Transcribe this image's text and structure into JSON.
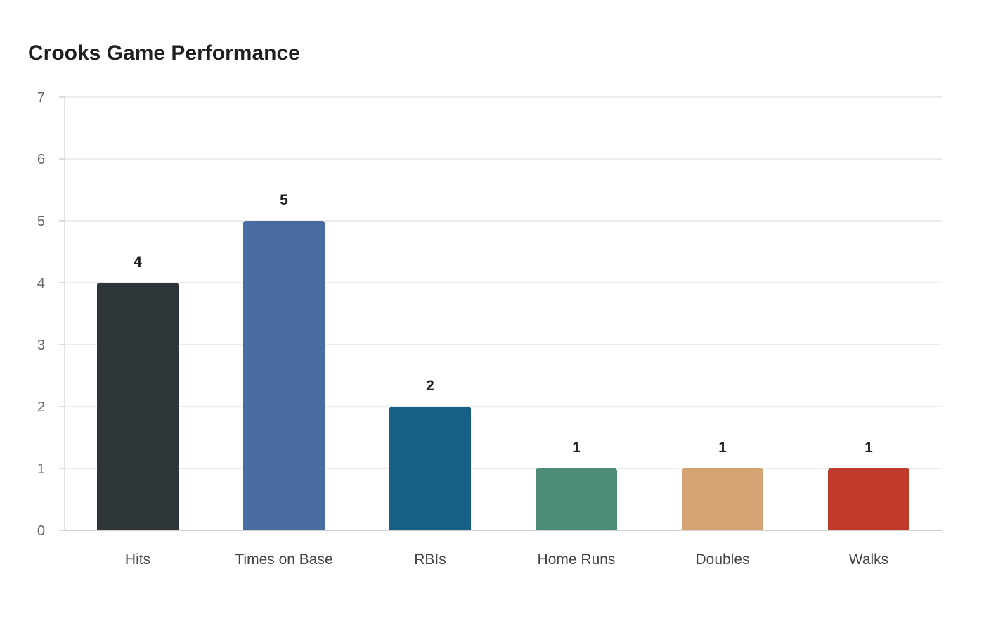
{
  "chart_data": {
    "type": "bar",
    "title": "Crooks Game Performance",
    "xlabel": "",
    "ylabel": "",
    "categories": [
      "Hits",
      "Times on Base",
      "RBIs",
      "Home Runs",
      "Doubles",
      "Walks"
    ],
    "values": [
      4,
      5,
      2,
      1,
      1,
      1
    ],
    "colors": [
      "#2e3538",
      "#4a6da1",
      "#186186",
      "#4e8c7a",
      "#d3a373",
      "#c03a2b"
    ],
    "ylim": [
      0,
      7
    ],
    "yticks": [
      "0",
      "1",
      "2",
      "3",
      "4",
      "5",
      "6",
      "7"
    ],
    "grid": true,
    "legend": "none",
    "data_labels": true
  }
}
